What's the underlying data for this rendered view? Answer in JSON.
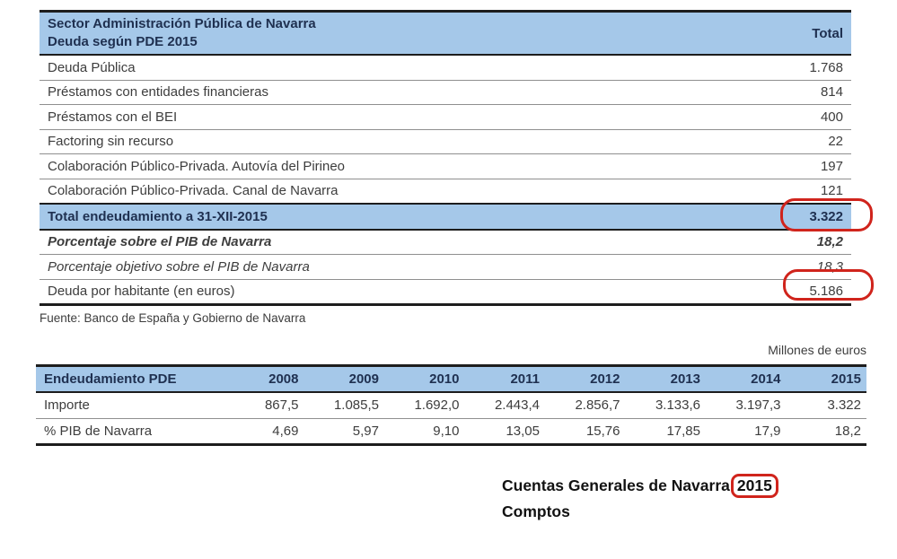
{
  "colors": {
    "header_blue": "#a5c8e9",
    "dark_line": "#1d1d1d",
    "thin_line": "#8f8f8f",
    "body_text": "#3d3d3d",
    "emphasis_text": "#1f3050",
    "annotation_red": "#d0241c"
  },
  "table1": {
    "header": {
      "title_line1": "Sector Administración Pública de Navarra",
      "title_line2": "Deuda según PDE 2015",
      "value_label": "Total"
    },
    "rows": [
      {
        "label": "Deuda Pública",
        "value": "1.768"
      },
      {
        "label": "Préstamos con entidades financieras",
        "value": "814"
      },
      {
        "label": "Préstamos con el BEI",
        "value": "400"
      },
      {
        "label": "Factoring sin recurso",
        "value": "22"
      },
      {
        "label": "Colaboración Público-Privada. Autovía del Pirineo",
        "value": "197"
      },
      {
        "label": "Colaboración Público-Privada. Canal de Navarra",
        "value": "121"
      },
      {
        "label": "Total endeudamiento a 31-XII-2015",
        "value": "3.322"
      },
      {
        "label": "Porcentaje sobre el PIB de Navarra",
        "value": "18,2"
      },
      {
        "label": "Porcentaje objetivo sobre el PIB de Navarra",
        "value": "18,3"
      },
      {
        "label": "Deuda por habitante (en euros)",
        "value": "5.186"
      }
    ]
  },
  "source_note": "Fuente: Banco de España y Gobierno de Navarra",
  "units_note": "Millones de euros",
  "table2": {
    "header": [
      "Endeudamiento PDE",
      "2008",
      "2009",
      "2010",
      "2011",
      "2012",
      "2013",
      "2014",
      "2015"
    ],
    "rows": [
      {
        "label": "Importe",
        "values": [
          "867,5",
          "1.085,5",
          "1.692,0",
          "2.443,4",
          "2.856,7",
          "3.133,6",
          "3.197,3",
          "3.322"
        ]
      },
      {
        "label": "% PIB de Navarra",
        "values": [
          "4,69",
          "5,97",
          "9,10",
          "13,05",
          "15,76",
          "17,85",
          "17,9",
          "18,2"
        ]
      }
    ]
  },
  "caption": {
    "line1": "Cuentas Generales de Navarra",
    "year": "2015",
    "line2": "Comptos"
  }
}
